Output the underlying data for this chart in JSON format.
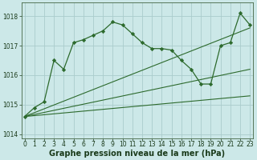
{
  "series1": {
    "x": [
      0,
      1,
      2,
      3,
      4,
      5,
      6,
      7,
      8,
      9,
      10,
      11,
      12,
      13,
      14,
      15,
      16,
      17,
      18,
      19,
      20,
      21,
      22,
      23
    ],
    "y": [
      1014.6,
      1014.9,
      1015.1,
      1016.5,
      1016.2,
      1017.1,
      1017.2,
      1017.35,
      1017.5,
      1017.8,
      1017.7,
      1017.4,
      1017.1,
      1016.9,
      1016.9,
      1016.85,
      1016.5,
      1016.2,
      1015.7,
      1015.7,
      1017.0,
      1017.1,
      1018.1,
      1017.7
    ],
    "color": "#2d6a2d",
    "marker": "D",
    "markersize": 2.2,
    "linewidth": 0.9
  },
  "series2": {
    "x": [
      0,
      23
    ],
    "y": [
      1014.6,
      1017.6
    ],
    "color": "#2d6a2d",
    "linewidth": 0.8
  },
  "series3": {
    "x": [
      0,
      23
    ],
    "y": [
      1014.6,
      1016.2
    ],
    "color": "#2d6a2d",
    "linewidth": 0.8
  },
  "series4": {
    "x": [
      0,
      23
    ],
    "y": [
      1014.6,
      1015.3
    ],
    "color": "#2d6a2d",
    "linewidth": 0.8
  },
  "ylim": [
    1013.85,
    1018.45
  ],
  "xlim": [
    -0.3,
    23.3
  ],
  "yticks": [
    1014,
    1015,
    1016,
    1017,
    1018
  ],
  "xticks": [
    0,
    1,
    2,
    3,
    4,
    5,
    6,
    7,
    8,
    9,
    10,
    11,
    12,
    13,
    14,
    15,
    16,
    17,
    18,
    19,
    20,
    21,
    22,
    23
  ],
  "xlabel": "Graphe pression niveau de la mer (hPa)",
  "bg_color": "#cce8e8",
  "grid_color": "#aacccc",
  "axis_color": "#446644",
  "label_color": "#1a3a1a",
  "tick_fontsize": 5.5,
  "xlabel_fontsize": 7.0
}
